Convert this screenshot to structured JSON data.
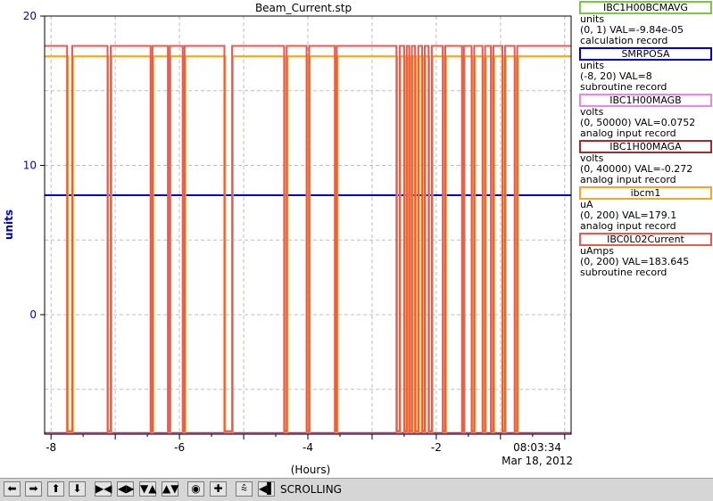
{
  "chart_data": {
    "type": "line",
    "title": "Beam_Current.stp",
    "xlabel": "(Hours)",
    "ylabel": "units",
    "xlim": [
      -8.1,
      0.1
    ],
    "ylim": [
      -8.0,
      20
    ],
    "x_ticks": [
      "-8",
      "-6",
      "-4",
      "-2"
    ],
    "y_ticks": [
      "20",
      "10",
      "0"
    ],
    "timestamp": "08:03:34",
    "date": "Mar 18, 2012",
    "grid": true,
    "beam_off_intervals": [
      [
        -7.75,
        -7.67
      ],
      [
        -7.12,
        -7.07
      ],
      [
        -6.45,
        -6.42
      ],
      [
        -6.18,
        -6.15
      ],
      [
        -5.95,
        -5.92
      ],
      [
        -5.3,
        -5.18
      ],
      [
        -4.37,
        -4.33
      ],
      [
        -4.02,
        -3.98
      ],
      [
        -3.58,
        -3.55
      ],
      [
        -2.62,
        -2.57
      ],
      [
        -2.5,
        -2.46
      ],
      [
        -2.42,
        -2.38
      ],
      [
        -2.33,
        -2.28
      ],
      [
        -2.22,
        -2.18
      ],
      [
        -2.12,
        -2.07
      ],
      [
        -1.9,
        -1.86
      ],
      [
        -1.6,
        -1.57
      ],
      [
        -1.45,
        -1.41
      ],
      [
        -1.28,
        -1.24
      ],
      [
        -1.15,
        -1.11
      ],
      [
        -0.97,
        -0.93
      ],
      [
        -0.78,
        -0.74
      ]
    ],
    "series": [
      {
        "name": "IBC1H00BCMAVG",
        "color": "#7ac943",
        "level": -8.0
      },
      {
        "name": "SMRPOSA",
        "color": "#0000cc",
        "level": 8.0
      },
      {
        "name": "IBC1H00MAGB",
        "color": "#ee82ee",
        "level": -7.95
      },
      {
        "name": "IBC1H00MAGA",
        "color": "#a52a2a",
        "level": -7.9
      },
      {
        "name": "ibcm1",
        "color": "#f5a623",
        "on_level": 17.3,
        "off_level": -7.85
      },
      {
        "name": "IBC0L02Current",
        "color": "#e85a4f",
        "on_level": 18.0,
        "off_level": -7.8
      }
    ]
  },
  "legend": [
    {
      "name": "IBC1H00BCMAVG",
      "color": "#7ac943",
      "units": "units",
      "range": "(0, 1) VAL=-9.84e-05",
      "rtype": "calculation record"
    },
    {
      "name": "SMRPOSA",
      "color": "#0000cc",
      "units": "units",
      "range": "(-8, 20) VAL=8",
      "rtype": "subroutine record"
    },
    {
      "name": "IBC1H00MAGB",
      "color": "#ee82ee",
      "units": "volts",
      "range": "(0, 50000) VAL=0.0752",
      "rtype": "analog input record"
    },
    {
      "name": "IBC1H00MAGA",
      "color": "#a52a2a",
      "units": "volts",
      "range": "(0, 40000) VAL=-0.272",
      "rtype": "analog input record"
    },
    {
      "name": "ibcm1",
      "color": "#f5a623",
      "units": "uA",
      "range": "(0, 200) VAL=179.1",
      "rtype": "analog input record"
    },
    {
      "name": "IBC0L02Current",
      "color": "#e85a4f",
      "units": "uAmps",
      "range": "(0, 200) VAL=183.645",
      "rtype": "subroutine record"
    }
  ],
  "toolbar": {
    "status": "SCROLLING",
    "icons": [
      "arrow-left-icon",
      "arrow-right-icon",
      "arrow-up-icon",
      "arrow-down-icon",
      "zoom-in-x-icon",
      "zoom-out-x-icon",
      "zoom-in-y-icon",
      "zoom-out-y-icon",
      "record-icon",
      "add-icon",
      "auto-scale-icon",
      "scroll-back-icon"
    ],
    "glyphs": [
      "⬅",
      "➡",
      "⬆",
      "⬇",
      "▶◀",
      "◀▶",
      "▼▲",
      "▲▼",
      "◉",
      "✚",
      "⩯",
      "◀▌"
    ]
  }
}
